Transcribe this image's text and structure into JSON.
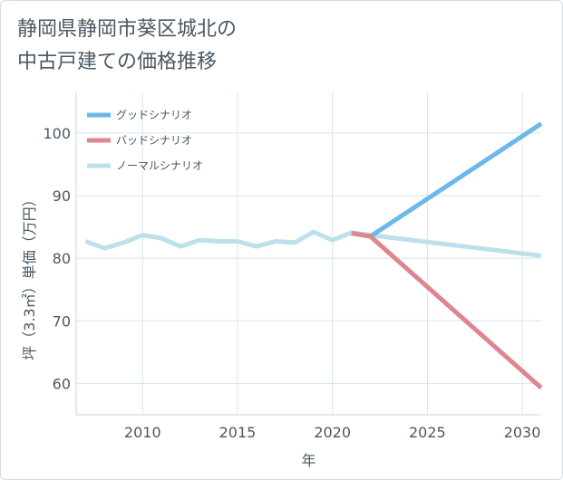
{
  "title": {
    "line1": "静岡県静岡市葵区城北の",
    "line2": "中古戸建ての価格推移"
  },
  "chart_data": {
    "type": "line",
    "xlabel": "年",
    "ylabel": "坪（3.3㎡）単価（万円）",
    "xlim": [
      2006.5,
      2031
    ],
    "ylim": [
      55,
      106.5
    ],
    "xticks": [
      2010,
      2015,
      2020,
      2025,
      2030
    ],
    "yticks": [
      60,
      70,
      80,
      90,
      100
    ],
    "grid": true,
    "legend_position": "top-left",
    "series": [
      {
        "name": "グッドシナリオ",
        "color": "#6cb8ea",
        "x": [
          2021,
          2022,
          2031
        ],
        "y": [
          84.0,
          83.5,
          101.5
        ]
      },
      {
        "name": "バッドシナリオ",
        "color": "#de868f",
        "x": [
          2021,
          2022,
          2031
        ],
        "y": [
          84.0,
          83.5,
          59.3
        ]
      },
      {
        "name": "ノーマルシナリオ",
        "color": "#bde0ed",
        "x": [
          2007,
          2008,
          2009,
          2010,
          2011,
          2012,
          2013,
          2014,
          2015,
          2016,
          2017,
          2018,
          2019,
          2020,
          2021,
          2022,
          2031
        ],
        "y": [
          82.7,
          81.6,
          82.5,
          83.7,
          83.2,
          81.9,
          82.9,
          82.7,
          82.7,
          81.9,
          82.7,
          82.5,
          84.2,
          82.9,
          84.1,
          83.7,
          80.4
        ]
      }
    ]
  }
}
